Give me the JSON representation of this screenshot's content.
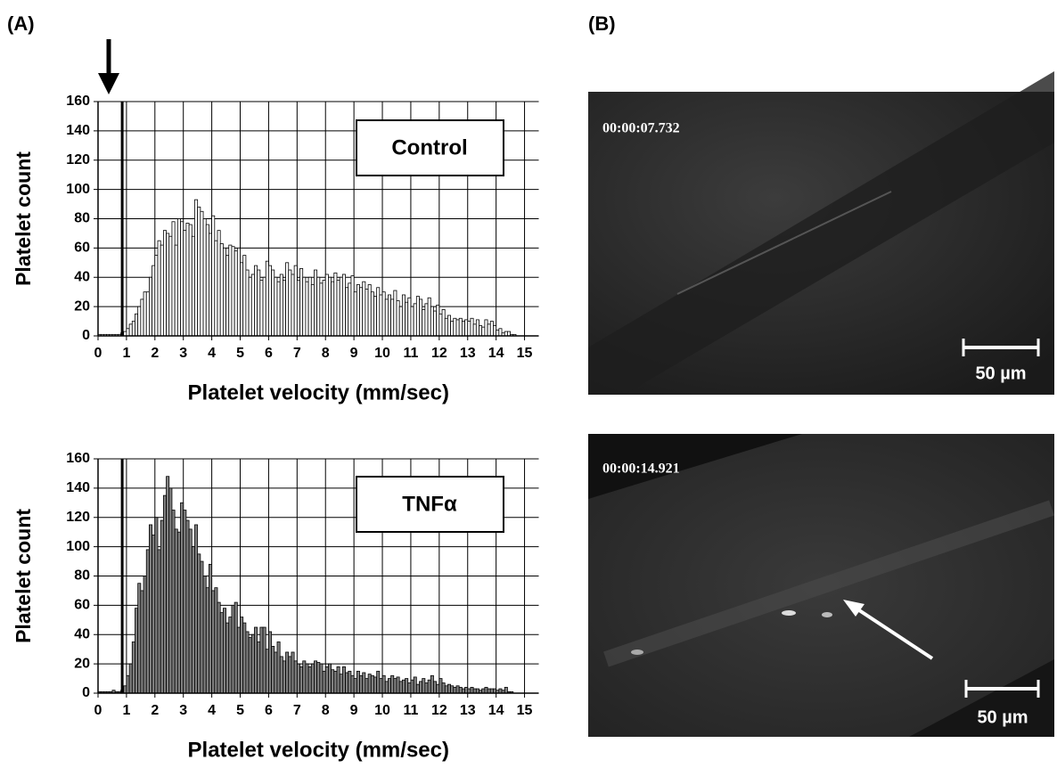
{
  "panels": [
    "(A)",
    "(B)"
  ],
  "images": [
    {
      "timestamp": "00:00:07.732",
      "scale_label": "50 µm"
    },
    {
      "timestamp": "00:00:14.921",
      "scale_label": "50 µm"
    }
  ],
  "chart_data": [
    {
      "type": "histogram",
      "annotation": "Control",
      "xlabel": "Platelet velocity (mm/sec)",
      "ylabel": "Platelet count",
      "color": "#ffffff",
      "grid": true,
      "vline": 0.85,
      "xlim": [
        0,
        15.5
      ],
      "ylim": [
        0,
        160
      ],
      "xticks": [
        0,
        1,
        2,
        3,
        4,
        5,
        6,
        7,
        8,
        9,
        10,
        11,
        12,
        13,
        14,
        15
      ],
      "yticks": [
        0,
        20,
        40,
        60,
        80,
        100,
        120,
        140,
        160
      ],
      "bins": [
        0,
        0.1,
        0.2,
        0.3,
        0.4,
        0.5,
        0.6,
        0.7,
        0.8,
        0.9,
        1,
        1.1,
        1.2,
        1.3,
        1.4,
        1.5,
        1.6,
        1.7,
        1.8,
        1.9,
        2,
        2.1,
        2.2,
        2.3,
        2.4,
        2.5,
        2.6,
        2.7,
        2.8,
        2.9,
        3,
        3.1,
        3.2,
        3.3,
        3.4,
        3.5,
        3.6,
        3.7,
        3.8,
        3.9,
        4,
        4.1,
        4.2,
        4.3,
        4.4,
        4.5,
        4.6,
        4.7,
        4.8,
        4.9,
        5,
        5.1,
        5.2,
        5.3,
        5.4,
        5.5,
        5.6,
        5.7,
        5.8,
        5.9,
        6,
        6.1,
        6.2,
        6.3,
        6.4,
        6.5,
        6.6,
        6.7,
        6.8,
        6.9,
        7,
        7.1,
        7.2,
        7.3,
        7.4,
        7.5,
        7.6,
        7.7,
        7.8,
        7.9,
        8,
        8.1,
        8.2,
        8.3,
        8.4,
        8.5,
        8.6,
        8.7,
        8.8,
        8.9,
        9,
        9.1,
        9.2,
        9.3,
        9.4,
        9.5,
        9.6,
        9.7,
        9.8,
        9.9,
        10,
        10.1,
        10.2,
        10.3,
        10.4,
        10.5,
        10.6,
        10.7,
        10.8,
        10.9,
        11,
        11.1,
        11.2,
        11.3,
        11.4,
        11.5,
        11.6,
        11.7,
        11.8,
        11.9,
        12,
        12.1,
        12.2,
        12.3,
        12.4,
        12.5,
        12.6,
        12.7,
        12.8,
        12.9,
        13,
        13.1,
        13.2,
        13.3,
        13.4,
        13.5,
        13.6,
        13.7,
        13.8,
        13.9,
        14,
        14.1,
        14.2,
        14.3,
        14.4,
        14.5,
        14.6,
        14.7,
        14.8,
        14.9,
        15,
        15.1,
        15.2,
        15.3,
        15.4,
        15.5
      ],
      "values": [
        1,
        1,
        1,
        1,
        1,
        1,
        1,
        1,
        2,
        3,
        5,
        8,
        10,
        15,
        20,
        25,
        30,
        30,
        40,
        48,
        55,
        65,
        62,
        72,
        70,
        68,
        78,
        62,
        80,
        78,
        72,
        77,
        76,
        68,
        93,
        88,
        85,
        80,
        76,
        70,
        82,
        65,
        72,
        63,
        60,
        55,
        62,
        61,
        58,
        60,
        50,
        55,
        45,
        40,
        42,
        48,
        45,
        38,
        40,
        51,
        48,
        45,
        40,
        37,
        42,
        38,
        50,
        45,
        42,
        48,
        38,
        46,
        40,
        37,
        40,
        35,
        45,
        40,
        36,
        38,
        42,
        40,
        37,
        43,
        38,
        40,
        42,
        33,
        36,
        41,
        30,
        35,
        33,
        37,
        32,
        35,
        30,
        27,
        33,
        28,
        30,
        25,
        28,
        25,
        31,
        24,
        20,
        28,
        23,
        26,
        20,
        22,
        27,
        25,
        18,
        22,
        26,
        20,
        17,
        21,
        15,
        18,
        12,
        14,
        10,
        12,
        11,
        12,
        10,
        11,
        10,
        12,
        8,
        11,
        7,
        6,
        11,
        8,
        10,
        7,
        4,
        5,
        2,
        3,
        3,
        1,
        1,
        0,
        0,
        0,
        0,
        0,
        0,
        0,
        0
      ]
    },
    {
      "type": "histogram",
      "annotation": "TNFα",
      "xlabel": "Platelet velocity (mm/sec)",
      "ylabel": "Platelet count",
      "color": "#808080",
      "grid": true,
      "vline": 0.85,
      "xlim": [
        0,
        15.5
      ],
      "ylim": [
        0,
        160
      ],
      "xticks": [
        0,
        1,
        2,
        3,
        4,
        5,
        6,
        7,
        8,
        9,
        10,
        11,
        12,
        13,
        14,
        15
      ],
      "yticks": [
        0,
        20,
        40,
        60,
        80,
        100,
        120,
        140,
        160
      ],
      "bins": [
        0,
        0.1,
        0.2,
        0.3,
        0.4,
        0.5,
        0.6,
        0.7,
        0.8,
        0.9,
        1,
        1.1,
        1.2,
        1.3,
        1.4,
        1.5,
        1.6,
        1.7,
        1.8,
        1.9,
        2,
        2.1,
        2.2,
        2.3,
        2.4,
        2.5,
        2.6,
        2.7,
        2.8,
        2.9,
        3,
        3.1,
        3.2,
        3.3,
        3.4,
        3.5,
        3.6,
        3.7,
        3.8,
        3.9,
        4,
        4.1,
        4.2,
        4.3,
        4.4,
        4.5,
        4.6,
        4.7,
        4.8,
        4.9,
        5,
        5.1,
        5.2,
        5.3,
        5.4,
        5.5,
        5.6,
        5.7,
        5.8,
        5.9,
        6,
        6.1,
        6.2,
        6.3,
        6.4,
        6.5,
        6.6,
        6.7,
        6.8,
        6.9,
        7,
        7.1,
        7.2,
        7.3,
        7.4,
        7.5,
        7.6,
        7.7,
        7.8,
        7.9,
        8,
        8.1,
        8.2,
        8.3,
        8.4,
        8.5,
        8.6,
        8.7,
        8.8,
        8.9,
        9,
        9.1,
        9.2,
        9.3,
        9.4,
        9.5,
        9.6,
        9.7,
        9.8,
        9.9,
        10,
        10.1,
        10.2,
        10.3,
        10.4,
        10.5,
        10.6,
        10.7,
        10.8,
        10.9,
        11,
        11.1,
        11.2,
        11.3,
        11.4,
        11.5,
        11.6,
        11.7,
        11.8,
        11.9,
        12,
        12.1,
        12.2,
        12.3,
        12.4,
        12.5,
        12.6,
        12.7,
        12.8,
        12.9,
        13,
        13.1,
        13.2,
        13.3,
        13.4,
        13.5,
        13.6,
        13.7,
        13.8,
        13.9,
        14,
        14.1,
        14.2,
        14.3,
        14.4,
        14.5,
        14.6,
        14.7,
        14.8,
        14.9,
        15,
        15.1,
        15.2,
        15.3,
        15.4,
        15.5
      ],
      "values": [
        1,
        1,
        1,
        1,
        1,
        2,
        1,
        1,
        2,
        5,
        12,
        20,
        35,
        58,
        75,
        70,
        80,
        98,
        115,
        108,
        120,
        98,
        118,
        135,
        148,
        140,
        125,
        112,
        110,
        130,
        125,
        118,
        112,
        100,
        115,
        95,
        90,
        80,
        72,
        88,
        70,
        72,
        62,
        55,
        58,
        48,
        52,
        60,
        62,
        45,
        52,
        48,
        42,
        38,
        40,
        45,
        35,
        45,
        45,
        30,
        42,
        32,
        28,
        35,
        25,
        22,
        28,
        25,
        28,
        22,
        20,
        18,
        22,
        20,
        18,
        20,
        22,
        21,
        20,
        15,
        18,
        20,
        16,
        15,
        18,
        13,
        18,
        14,
        15,
        12,
        10,
        15,
        12,
        14,
        10,
        13,
        12,
        11,
        15,
        10,
        12,
        8,
        10,
        12,
        10,
        11,
        8,
        9,
        10,
        7,
        9,
        11,
        6,
        8,
        10,
        7,
        9,
        12,
        8,
        6,
        10,
        7,
        5,
        6,
        5,
        4,
        5,
        4,
        3,
        4,
        3,
        4,
        3,
        3,
        2,
        3,
        4,
        3,
        3,
        3,
        2,
        3,
        2,
        4,
        1,
        1,
        0,
        0,
        0,
        0,
        0,
        0,
        0,
        0,
        0
      ]
    }
  ]
}
